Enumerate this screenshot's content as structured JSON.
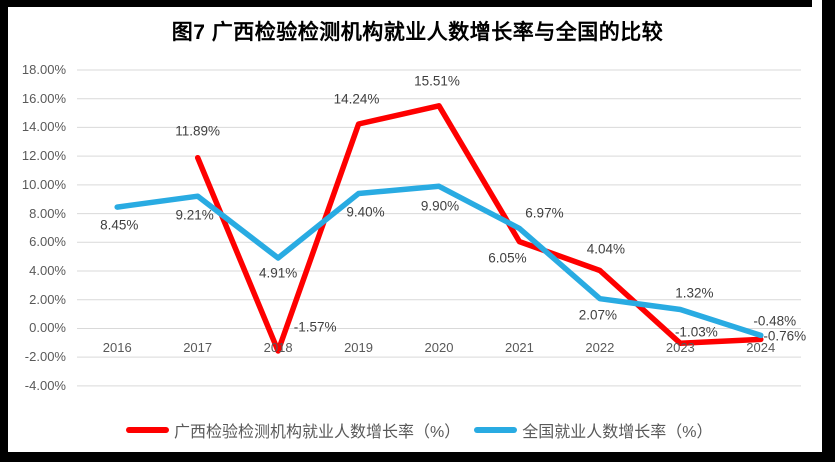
{
  "title": "图7 广西检验检测机构就业人数增长率与全国的比较",
  "legend": [
    {
      "label": "广西检验检测机构就业人数增长率（%）",
      "color": "#FE0000"
    },
    {
      "label": "全国就业人数增长率（%）",
      "color": "#29ABE2"
    }
  ],
  "axes": {
    "y_tick_labels": [
      "18.00%",
      "16.00%",
      "14.00%",
      "12.00%",
      "10.00%",
      "8.00%",
      "6.00%",
      "4.00%",
      "2.00%",
      "0.00%",
      "-2.00%",
      "-4.00%"
    ],
    "x_tick_labels": [
      "2016",
      "2017",
      "2018",
      "2019",
      "2020",
      "2021",
      "2022",
      "2023",
      "2024"
    ]
  },
  "chart_data": {
    "type": "line",
    "title": "图7 广西检验检测机构就业人数增长率与全国的比较",
    "categories": [
      "2016",
      "2017",
      "2018",
      "2019",
      "2020",
      "2021",
      "2022",
      "2023",
      "2024"
    ],
    "ylim": [
      -4,
      18
    ],
    "yticks": [
      18,
      16,
      14,
      12,
      10,
      8,
      6,
      4,
      2,
      0,
      -2,
      -4
    ],
    "grid": true,
    "legend_position": "bottom",
    "gridline_color": "#D9D9D9",
    "series": [
      {
        "name": "广西检验检测机构就业人数增长率（%）",
        "color": "#FE0000",
        "values": [
          null,
          11.89,
          -1.57,
          14.24,
          15.51,
          6.05,
          4.04,
          -1.03,
          -0.76
        ],
        "data_labels": [
          null,
          {
            "text": "11.89%",
            "dx": 0,
            "dy": -27
          },
          {
            "text": "-1.57%",
            "dx": 37,
            "dy": -24
          },
          {
            "text": "14.24%",
            "dx": -2,
            "dy": -25
          },
          {
            "text": "15.51%",
            "dx": -2,
            "dy": -25
          },
          {
            "text": "6.05%",
            "dx": -12,
            "dy": 16
          },
          {
            "text": "4.04%",
            "dx": 6,
            "dy": -21
          },
          {
            "text": "-1.03%",
            "dx": 16,
            "dy": -11
          },
          {
            "text": "-0.76%",
            "dx": 24,
            "dy": -3
          }
        ]
      },
      {
        "name": "全国就业人数增长率（%）",
        "color": "#29ABE2",
        "values": [
          8.45,
          9.21,
          4.91,
          9.4,
          9.9,
          6.97,
          2.07,
          1.32,
          -0.48
        ],
        "data_labels": [
          {
            "text": "8.45%",
            "dx": 2,
            "dy": 18
          },
          {
            "text": "9.21%",
            "dx": -3,
            "dy": 19
          },
          {
            "text": "4.91%",
            "dx": 0,
            "dy": 15
          },
          {
            "text": "9.40%",
            "dx": 7,
            "dy": 19
          },
          {
            "text": "9.90%",
            "dx": 1,
            "dy": 20
          },
          {
            "text": "6.97%",
            "dx": 25,
            "dy": -15
          },
          {
            "text": "2.07%",
            "dx": -2,
            "dy": 16
          },
          {
            "text": "1.32%",
            "dx": 14,
            "dy": -17
          },
          {
            "text": "-0.48%",
            "dx": 14,
            "dy": -14
          }
        ]
      }
    ]
  },
  "colors": {
    "gridline": "#D9D9D9",
    "axis_text": "#595959",
    "data_label_text": "#3F3F3F",
    "title_text": "#000000",
    "background": "#FFFFFF",
    "frame": "#000000"
  }
}
